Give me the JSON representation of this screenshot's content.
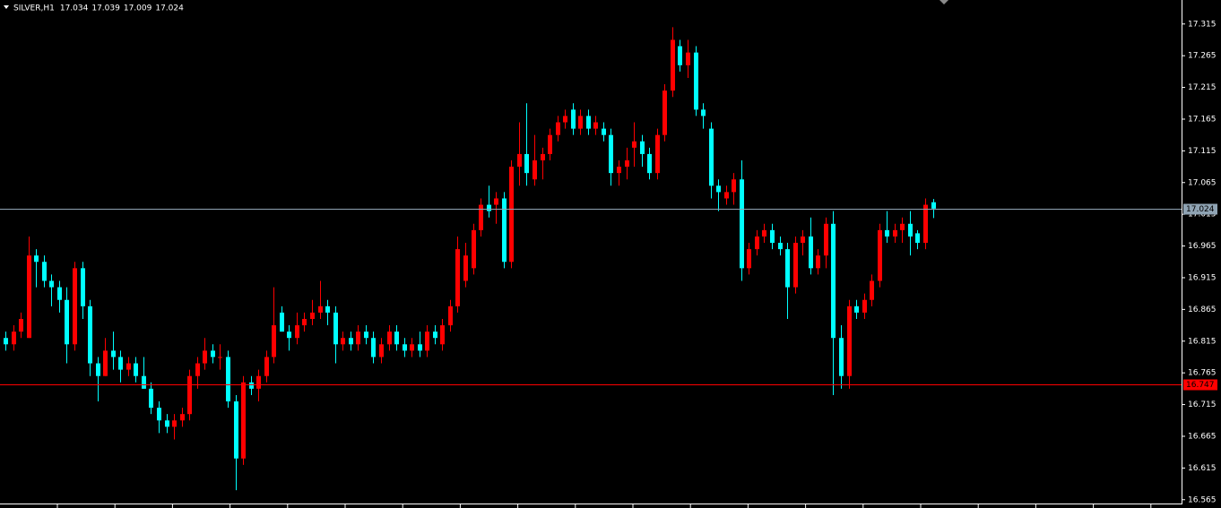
{
  "chart_data": {
    "type": "candlestick",
    "title": "SILVER,H1",
    "ylim": [
      16.559,
      17.35
    ],
    "yticks": [
      16.565,
      16.615,
      16.665,
      16.715,
      16.765,
      16.815,
      16.865,
      16.915,
      16.965,
      17.015,
      17.065,
      17.115,
      17.165,
      17.215,
      17.265,
      17.315
    ],
    "up_color": "#ff0000",
    "down_color": "#00ffff",
    "price_lines": [
      {
        "value": 17.024,
        "color": "#8fa3b3"
      },
      {
        "value": 16.747,
        "color": "#ff0000"
      }
    ],
    "series": {
      "open": [
        16.82,
        16.81,
        16.83,
        16.82,
        16.95,
        16.94,
        16.91,
        16.9,
        16.88,
        16.81,
        16.93,
        16.87,
        16.78,
        16.76,
        16.8,
        16.79,
        16.77,
        16.78,
        16.76,
        16.74,
        16.71,
        16.69,
        16.68,
        16.69,
        16.7,
        16.76,
        16.78,
        16.8,
        16.79,
        16.79,
        16.72,
        16.63,
        16.75,
        16.74,
        16.76,
        16.79,
        16.86,
        16.83,
        16.82,
        16.84,
        16.85,
        16.86,
        16.87,
        16.86,
        16.81,
        16.82,
        16.81,
        16.83,
        16.82,
        16.79,
        16.81,
        16.83,
        16.81,
        16.8,
        16.81,
        16.8,
        16.83,
        16.81,
        16.84,
        16.87,
        16.91,
        16.93,
        16.99,
        17.03,
        17.03,
        17.04,
        16.94,
        17.09,
        17.11,
        17.07,
        17.1,
        17.11,
        17.14,
        17.16,
        17.18,
        17.15,
        17.17,
        17.15,
        17.15,
        17.14,
        17.08,
        17.09,
        17.12,
        17.13,
        17.11,
        17.08,
        17.14,
        17.21,
        17.28,
        17.25,
        17.27,
        17.18,
        17.15,
        17.06,
        17.04,
        17.05,
        17.07,
        16.93,
        16.96,
        16.98,
        16.99,
        16.97,
        16.96,
        16.9,
        16.97,
        16.98,
        16.93,
        16.95,
        17.0,
        16.82,
        16.76,
        16.87,
        16.86,
        16.88,
        16.91,
        16.99,
        16.98,
        16.99,
        17.0,
        16.985,
        16.97,
        17.034
      ],
      "high": [
        16.83,
        16.84,
        16.86,
        16.98,
        16.96,
        16.95,
        16.92,
        16.91,
        16.9,
        16.94,
        16.94,
        16.88,
        16.79,
        16.82,
        16.83,
        16.8,
        16.79,
        16.79,
        16.79,
        16.75,
        16.72,
        16.7,
        16.7,
        16.71,
        16.77,
        16.79,
        16.82,
        16.81,
        16.81,
        16.8,
        16.73,
        16.76,
        16.76,
        16.77,
        16.8,
        16.9,
        16.87,
        16.84,
        16.86,
        16.86,
        16.88,
        16.91,
        16.88,
        16.87,
        16.83,
        16.83,
        16.84,
        16.84,
        16.83,
        16.82,
        16.84,
        16.84,
        16.82,
        16.82,
        16.83,
        16.84,
        16.84,
        16.85,
        16.88,
        16.98,
        16.97,
        17.0,
        17.04,
        17.06,
        17.05,
        17.05,
        17.1,
        17.16,
        17.19,
        17.14,
        17.12,
        17.15,
        17.17,
        17.18,
        17.19,
        17.18,
        17.18,
        17.17,
        17.16,
        17.15,
        17.1,
        17.12,
        17.16,
        17.14,
        17.12,
        17.15,
        17.22,
        17.31,
        17.29,
        17.29,
        17.28,
        17.19,
        17.16,
        17.07,
        17.06,
        17.08,
        17.1,
        16.97,
        16.99,
        17.0,
        17.0,
        16.98,
        16.97,
        16.98,
        16.99,
        17.01,
        16.96,
        17.01,
        17.02,
        16.84,
        16.88,
        16.88,
        16.89,
        16.92,
        17.0,
        17.02,
        17.0,
        17.01,
        17.02,
        16.99,
        17.04,
        17.039
      ],
      "low": [
        16.8,
        16.8,
        16.82,
        16.82,
        16.9,
        16.9,
        16.87,
        16.86,
        16.78,
        16.8,
        16.85,
        16.76,
        16.72,
        16.76,
        16.77,
        16.75,
        16.76,
        16.75,
        16.74,
        16.7,
        16.67,
        16.67,
        16.66,
        16.68,
        16.69,
        16.74,
        16.77,
        16.78,
        16.77,
        16.71,
        16.58,
        16.62,
        16.73,
        16.72,
        16.75,
        16.78,
        16.83,
        16.8,
        16.81,
        16.83,
        16.84,
        16.85,
        16.84,
        16.78,
        16.8,
        16.8,
        16.8,
        16.81,
        16.78,
        16.78,
        16.8,
        16.8,
        16.79,
        16.79,
        16.79,
        16.79,
        16.81,
        16.8,
        16.83,
        16.86,
        16.9,
        16.92,
        16.98,
        17.01,
        17.0,
        16.93,
        16.93,
        17.06,
        17.06,
        17.06,
        17.07,
        17.1,
        17.13,
        17.15,
        17.14,
        17.14,
        17.14,
        17.14,
        17.13,
        17.06,
        17.06,
        17.07,
        17.09,
        17.09,
        17.07,
        17.07,
        17.13,
        17.2,
        17.24,
        17.23,
        17.17,
        17.15,
        17.04,
        17.02,
        17.03,
        17.03,
        16.91,
        16.92,
        16.95,
        16.97,
        16.96,
        16.95,
        16.85,
        16.89,
        16.95,
        16.92,
        16.92,
        16.93,
        16.73,
        16.74,
        16.74,
        16.85,
        16.85,
        16.87,
        16.9,
        16.97,
        16.97,
        16.97,
        16.95,
        16.96,
        16.96,
        17.009
      ],
      "close": [
        16.81,
        16.83,
        16.85,
        16.95,
        16.94,
        16.91,
        16.9,
        16.88,
        16.81,
        16.93,
        16.87,
        16.78,
        16.76,
        16.8,
        16.79,
        16.77,
        16.78,
        16.76,
        16.74,
        16.71,
        16.69,
        16.68,
        16.69,
        16.7,
        16.76,
        16.78,
        16.8,
        16.79,
        16.79,
        16.72,
        16.63,
        16.75,
        16.74,
        16.76,
        16.79,
        16.84,
        16.83,
        16.82,
        16.84,
        16.85,
        16.86,
        16.87,
        16.86,
        16.81,
        16.82,
        16.81,
        16.83,
        16.82,
        16.79,
        16.81,
        16.83,
        16.81,
        16.8,
        16.81,
        16.8,
        16.83,
        16.82,
        16.84,
        16.87,
        16.96,
        16.95,
        16.99,
        17.03,
        17.02,
        17.04,
        16.94,
        17.09,
        17.11,
        17.08,
        17.1,
        17.11,
        17.14,
        17.16,
        17.17,
        17.15,
        17.17,
        17.15,
        17.16,
        17.14,
        17.08,
        17.09,
        17.1,
        17.13,
        17.11,
        17.08,
        17.14,
        17.21,
        17.29,
        17.25,
        17.27,
        17.18,
        17.17,
        17.06,
        17.05,
        17.05,
        17.07,
        16.93,
        16.96,
        16.98,
        16.99,
        16.97,
        16.96,
        16.9,
        16.97,
        16.98,
        16.93,
        16.95,
        17.0,
        16.82,
        16.76,
        16.87,
        16.86,
        16.88,
        16.91,
        16.99,
        16.98,
        16.99,
        17.0,
        16.98,
        16.97,
        17.03,
        17.024
      ]
    }
  }
}
